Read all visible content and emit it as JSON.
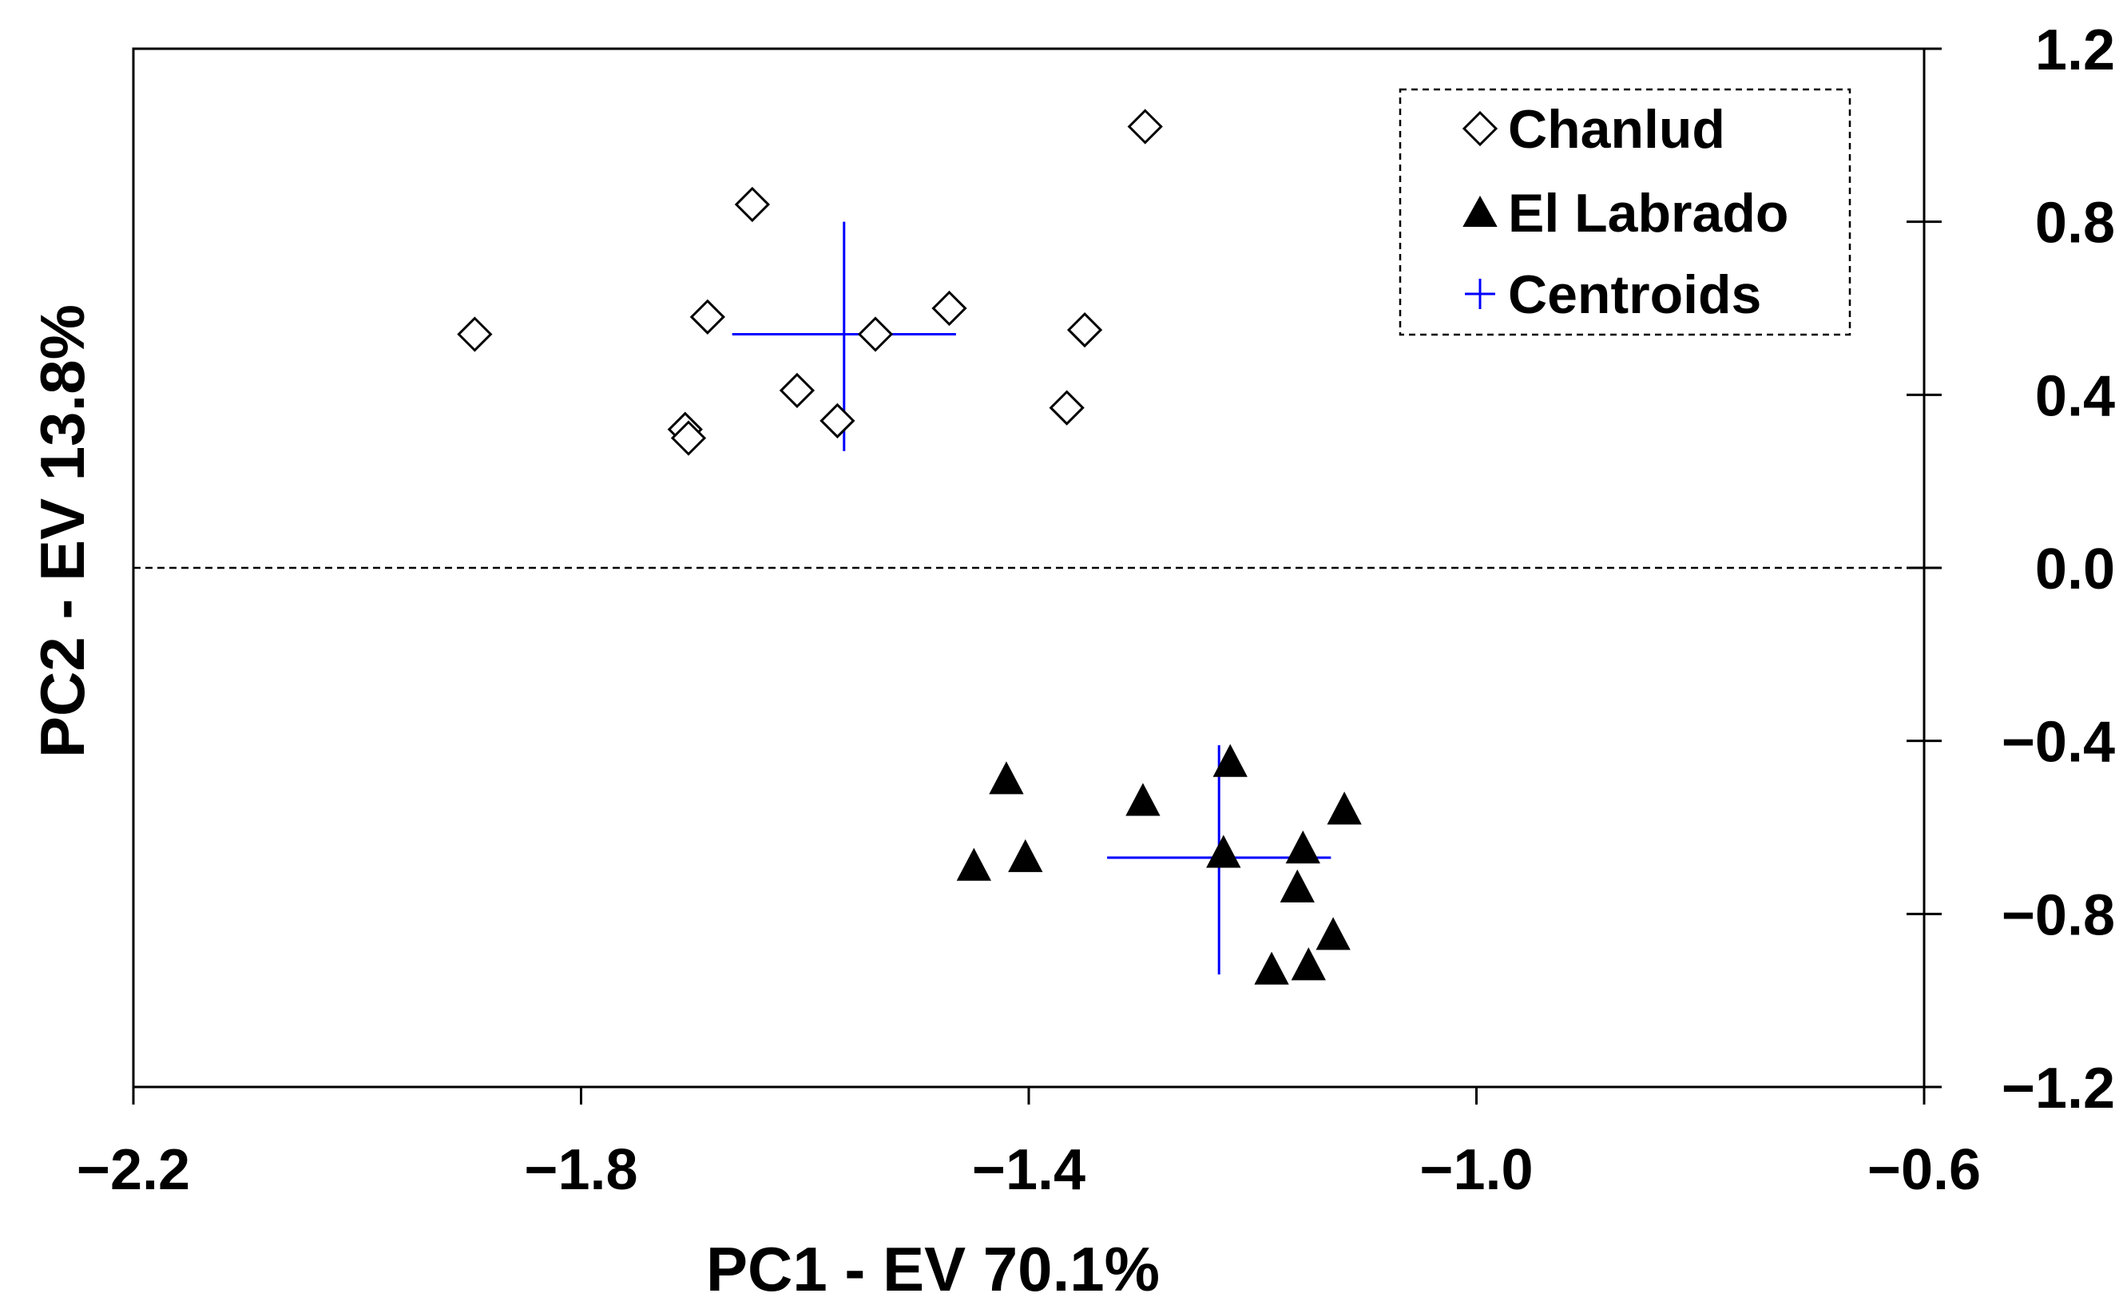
{
  "chart_data": {
    "type": "scatter",
    "title": "",
    "xlabel": "PC1 - EV 70.1%",
    "ylabel": "PC2 - EV 13.8%",
    "xlim": [
      -2.2,
      -0.6
    ],
    "ylim": [
      -1.2,
      1.2
    ],
    "x_ticks": [
      -2.2,
      -1.8,
      -1.4,
      -1.0,
      -0.6
    ],
    "x_tick_labels": [
      "−2.2",
      "−1.8",
      "−1.4",
      "−1.0",
      "−0.6"
    ],
    "y_ticks": [
      1.2,
      0.8,
      0.4,
      0.0,
      -0.4,
      -0.8,
      -1.2
    ],
    "y_tick_labels": [
      "1.2",
      "0.8",
      "0.4",
      "0.0",
      "−0.4",
      "−0.8",
      "−1.2"
    ],
    "y_axis_side": "right",
    "reference_line_y": 0.0,
    "legend_position": "top-right",
    "colors": {
      "points": "#000000",
      "centroid": "#0000ff",
      "axis": "#000000"
    },
    "series": [
      {
        "name": "Chanlud",
        "marker": "open-diamond",
        "points": [
          [
            -1.895,
            0.54
          ],
          [
            -1.647,
            0.84
          ],
          [
            -1.687,
            0.58
          ],
          [
            -1.707,
            0.32
          ],
          [
            -1.704,
            0.3
          ],
          [
            -1.607,
            0.41
          ],
          [
            -1.571,
            0.34
          ],
          [
            -1.537,
            0.54
          ],
          [
            -1.471,
            0.6
          ],
          [
            -1.366,
            0.37
          ],
          [
            -1.35,
            0.55
          ],
          [
            -1.296,
            1.02
          ]
        ]
      },
      {
        "name": "El Labrado",
        "marker": "filled-triangle",
        "points": [
          [
            -1.42,
            -0.49
          ],
          [
            -1.449,
            -0.69
          ],
          [
            -1.403,
            -0.67
          ],
          [
            -1.298,
            -0.54
          ],
          [
            -1.22,
            -0.45
          ],
          [
            -1.226,
            -0.66
          ],
          [
            -1.155,
            -0.65
          ],
          [
            -1.118,
            -0.56
          ],
          [
            -1.16,
            -0.74
          ],
          [
            -1.128,
            -0.85
          ],
          [
            -1.183,
            -0.93
          ],
          [
            -1.15,
            -0.92
          ]
        ]
      },
      {
        "name": "Centroids",
        "marker": "cross",
        "points": [
          {
            "x": -1.565,
            "y": 0.54,
            "x_range": [
              -1.665,
              -1.465
            ],
            "y_range": [
              0.27,
              0.8
            ]
          },
          {
            "x": -1.23,
            "y": -0.67,
            "x_range": [
              -1.33,
              -1.13
            ],
            "y_range": [
              -0.94,
              -0.41
            ]
          }
        ]
      }
    ]
  },
  "legend": {
    "items": [
      {
        "label": "Chanlud",
        "marker": "open-diamond"
      },
      {
        "label": "El Labrado",
        "marker": "filled-triangle"
      },
      {
        "label": "Centroids",
        "marker": "cross"
      }
    ]
  }
}
